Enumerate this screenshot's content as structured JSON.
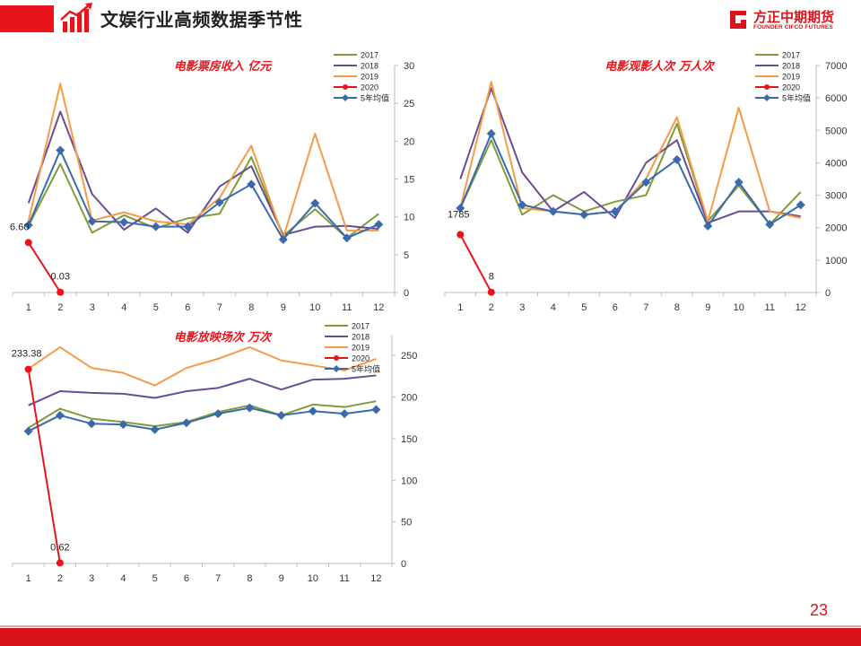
{
  "header": {
    "title": "文娱行业高频数据季节性"
  },
  "brand": {
    "name_cn": "方正中期期货",
    "name_en": "FOUNDER CIFCO FUTURES"
  },
  "page_number": "23",
  "colors": {
    "accent": "#d7141c",
    "s2017": "#7f9c3a",
    "s2018": "#6a4c93",
    "s2019": "#f59a45",
    "s2020": "#e8141c",
    "avg": "#3b6aaa"
  },
  "chart_data": [
    {
      "id": "box-office",
      "type": "line",
      "title": "电影票房收入 亿元",
      "categories": [
        "1",
        "2",
        "3",
        "4",
        "5",
        "6",
        "7",
        "8",
        "9",
        "10",
        "11",
        "12"
      ],
      "ylim": [
        0,
        30
      ],
      "yticks": [
        "0",
        "5",
        "10",
        "15",
        "20",
        "25",
        "30"
      ],
      "series": [
        {
          "name": "2017",
          "values": [
            8.8,
            17.0,
            7.9,
            10.2,
            8.5,
            9.8,
            10.4,
            17.9,
            7.5,
            11.0,
            7.2,
            10.4
          ],
          "marker": "none"
        },
        {
          "name": "2018",
          "values": [
            11.8,
            23.9,
            13.0,
            8.3,
            11.1,
            7.9,
            14.0,
            16.7,
            7.6,
            8.7,
            8.8,
            8.4
          ],
          "marker": "none"
        },
        {
          "name": "2019",
          "values": [
            9.4,
            27.6,
            9.5,
            10.6,
            9.4,
            9.0,
            12.5,
            19.4,
            7.2,
            21.0,
            8.2,
            8.2
          ],
          "marker": "none"
        },
        {
          "name": "2020",
          "values": [
            6.6,
            0.03,
            null,
            null,
            null,
            null,
            null,
            null,
            null,
            null,
            null,
            null
          ],
          "marker": "circle"
        },
        {
          "name": "5年均值",
          "values": [
            8.9,
            18.8,
            9.4,
            9.3,
            8.7,
            8.7,
            11.9,
            14.3,
            7.0,
            11.8,
            7.2,
            9.0
          ],
          "marker": "diamond"
        }
      ],
      "labels": [
        {
          "text": "6.60"
        },
        {
          "text": "0.03"
        }
      ]
    },
    {
      "id": "audience",
      "type": "line",
      "title": "电影观影人次 万人次",
      "categories": [
        "1",
        "2",
        "3",
        "4",
        "5",
        "6",
        "7",
        "8",
        "9",
        "10",
        "11",
        "12"
      ],
      "ylim": [
        0,
        7000
      ],
      "yticks": [
        "0",
        "1000",
        "2000",
        "3000",
        "4000",
        "5000",
        "6000",
        "7000"
      ],
      "series": [
        {
          "name": "2017",
          "values": [
            2600,
            4700,
            2400,
            3000,
            2500,
            2800,
            3000,
            5200,
            2200,
            3300,
            2100,
            3100
          ],
          "marker": "none"
        },
        {
          "name": "2018",
          "values": [
            3500,
            6300,
            3700,
            2500,
            3100,
            2300,
            4000,
            4700,
            2150,
            2500,
            2500,
            2350
          ],
          "marker": "none"
        },
        {
          "name": "2019",
          "values": [
            2600,
            6500,
            2600,
            2500,
            2400,
            2500,
            3500,
            5400,
            2200,
            5700,
            2500,
            2300
          ],
          "marker": "none"
        },
        {
          "name": "2020",
          "values": [
            1785,
            8,
            null,
            null,
            null,
            null,
            null,
            null,
            null,
            null,
            null,
            null
          ],
          "marker": "circle"
        },
        {
          "name": "5年均值",
          "values": [
            2600,
            4900,
            2700,
            2500,
            2400,
            2500,
            3400,
            4100,
            2050,
            3400,
            2100,
            2700
          ],
          "marker": "diamond"
        }
      ],
      "labels": [
        {
          "text": "1785"
        },
        {
          "text": "8"
        }
      ]
    },
    {
      "id": "screenings",
      "type": "line",
      "title": "电影放映场次 万次",
      "categories": [
        "1",
        "2",
        "3",
        "4",
        "5",
        "6",
        "7",
        "8",
        "9",
        "10",
        "11",
        "12"
      ],
      "ylim": [
        0,
        275
      ],
      "yticks": [
        "0",
        "50",
        "100",
        "150",
        "200",
        "250"
      ],
      "series": [
        {
          "name": "2017",
          "values": [
            163,
            186,
            174,
            170,
            165,
            170,
            182,
            190,
            178,
            191,
            188,
            195
          ],
          "marker": "none"
        },
        {
          "name": "2018",
          "values": [
            190,
            207,
            205,
            204,
            199,
            207,
            211,
            222,
            209,
            221,
            222,
            226
          ],
          "marker": "none"
        },
        {
          "name": "2019",
          "values": [
            234,
            260,
            235,
            229,
            214,
            235,
            246,
            260,
            244,
            238,
            232,
            246
          ],
          "marker": "none"
        },
        {
          "name": "2020",
          "values": [
            233.38,
            0.62,
            null,
            null,
            null,
            null,
            null,
            null,
            null,
            null,
            null,
            null
          ],
          "marker": "circle"
        },
        {
          "name": "5年均值",
          "values": [
            159,
            178,
            168,
            167,
            161,
            169,
            180,
            187,
            178,
            183,
            180,
            185
          ],
          "marker": "diamond"
        }
      ],
      "labels": [
        {
          "text": "233.38"
        },
        {
          "text": "0.62"
        }
      ]
    }
  ]
}
